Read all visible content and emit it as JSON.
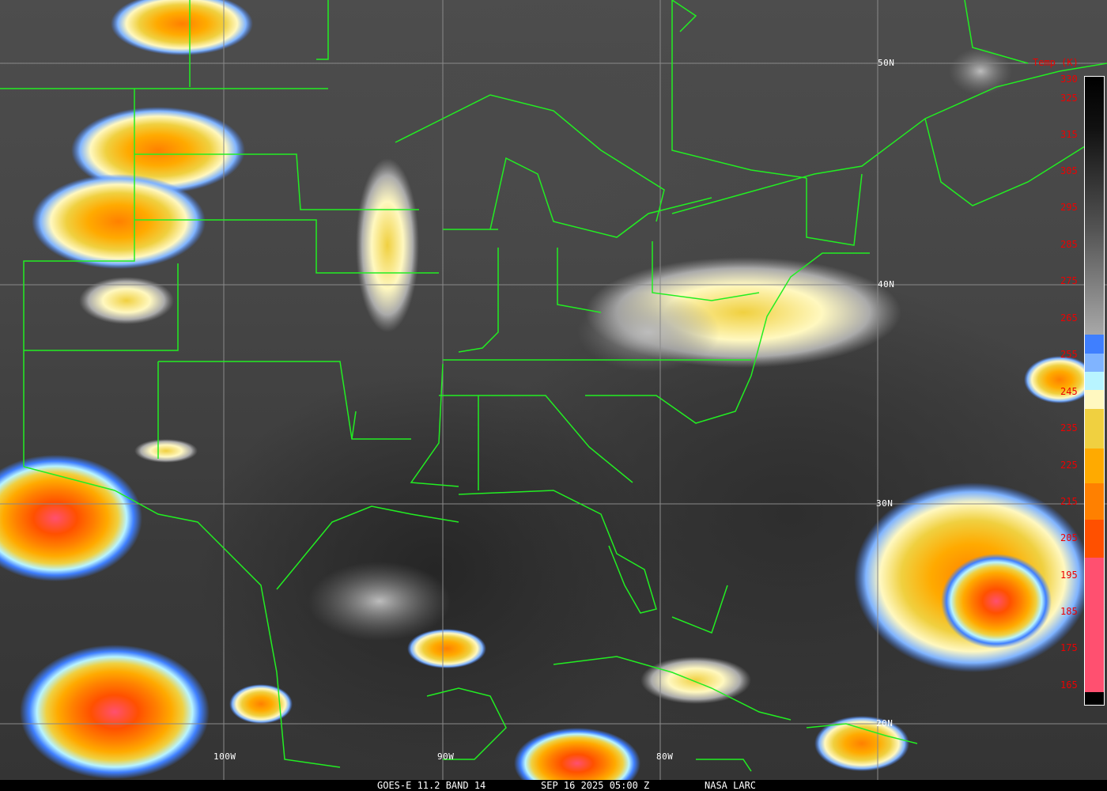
{
  "map": {
    "latitude_labels": [
      "50N",
      "40N",
      "30N",
      "20N"
    ],
    "longitude_labels": [
      "100W",
      "90W",
      "80W"
    ],
    "boundary_color": "#22ee22",
    "grid_color": "#8a8a8a"
  },
  "colorbar": {
    "title": "Temp (K)",
    "tick_labels": [
      "330",
      "325",
      "315",
      "305",
      "295",
      "285",
      "275",
      "265",
      "255",
      "245",
      "235",
      "225",
      "215",
      "205",
      "195",
      "185",
      "175",
      "165"
    ],
    "colors": {
      "blue": "#3f7fff",
      "light_blue": "#80b4ff",
      "pale_cyan": "#b8f4ff",
      "cream": "#fff8c0",
      "yellow": "#f0d040",
      "amber": "#ffaa00",
      "orange": "#ff8000",
      "red_orange": "#ff5000",
      "pink": "#ff5070"
    }
  },
  "caption": {
    "satellite": "GOES-E 11.2 BAND 14",
    "datetime": "SEP 16 2025 05:00 Z",
    "source": "NASA LARC"
  }
}
